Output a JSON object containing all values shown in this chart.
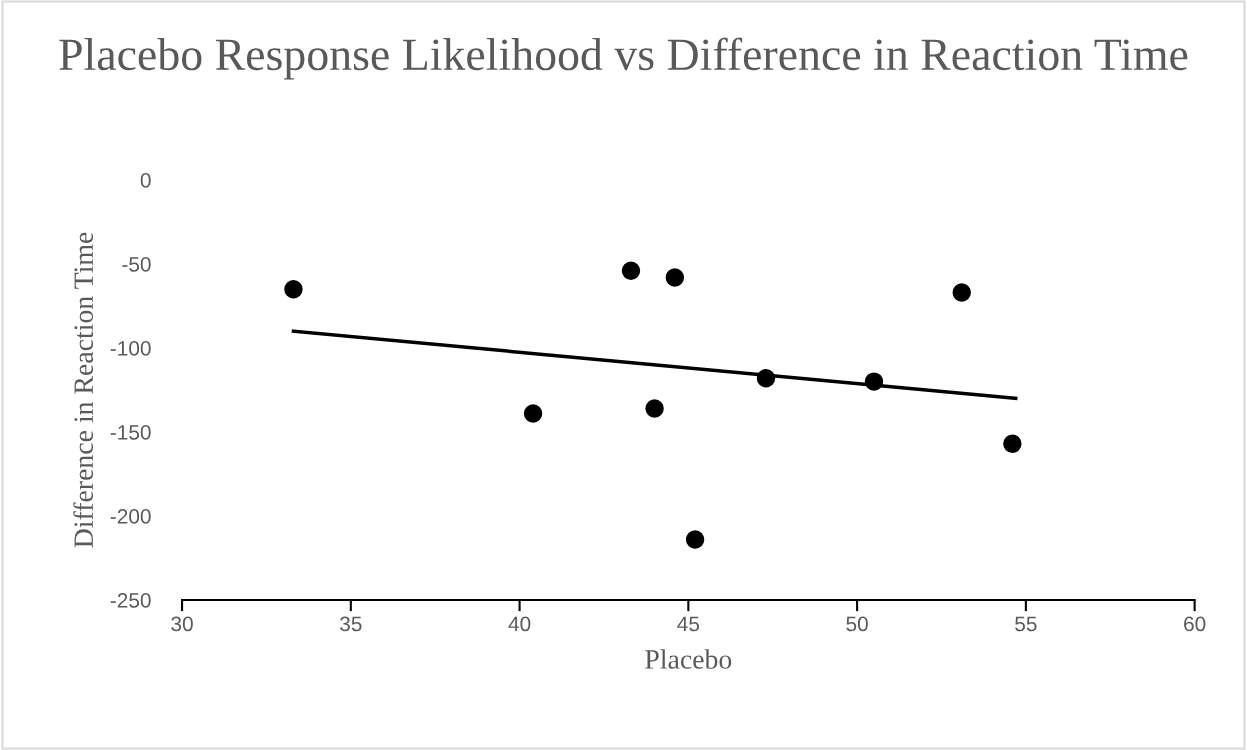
{
  "chart_data": {
    "type": "scatter",
    "title": "Placebo Response Likelihood vs Difference in Reaction Time",
    "xlabel": "Placebo",
    "ylabel": "Difference in Reaction Time",
    "xlim": [
      30,
      60
    ],
    "xticks": [
      30,
      35,
      40,
      45,
      50,
      55,
      60
    ],
    "ylim": [
      -250,
      0
    ],
    "yticks": [
      -250,
      -200,
      -150,
      -100,
      -50,
      0
    ],
    "grid": false,
    "legend": false,
    "marker": "circle",
    "series": [
      {
        "color": "#000000",
        "x": [
          33.3,
          40.4,
          43.3,
          44.0,
          44.6,
          45.2,
          47.3,
          50.5,
          53.1,
          54.6
        ],
        "values": [
          -65,
          -139,
          -54,
          -136,
          -58,
          -214,
          -118,
          -120,
          -67,
          -157
        ]
      },
      {
        "type": "line",
        "color": "#000000",
        "line_style": "solid",
        "marker": "none",
        "x": [
          33.3,
          54.7
        ],
        "values": [
          -90,
          -130
        ]
      }
    ]
  }
}
